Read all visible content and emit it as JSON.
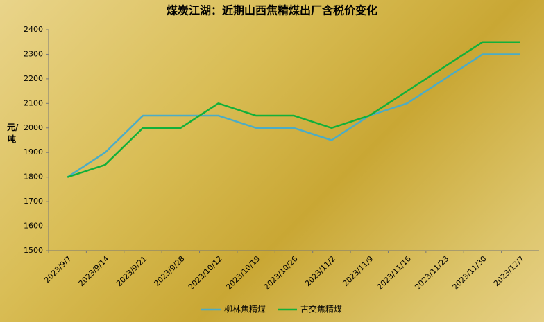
{
  "chart_data": {
    "type": "line",
    "title": "煤炭江湖：近期山西焦精煤出厂含税价变化",
    "y_label": "元/吨",
    "categories": [
      "2023/9/7",
      "2023/9/14",
      "2023/9/21",
      "2023/9/28",
      "2023/10/12",
      "2023/10/19",
      "2023/10/26",
      "2023/11/2",
      "2023/11/9",
      "2023/11/16",
      "2023/11/23",
      "2023/11/30",
      "2023/12/7"
    ],
    "series": [
      {
        "name": "柳林焦精煤",
        "color": "#4bacc6",
        "values": [
          1800,
          1900,
          2050,
          2050,
          2050,
          2000,
          2000,
          1950,
          2050,
          2100,
          2200,
          2300,
          2300
        ]
      },
      {
        "name": "古交焦精煤",
        "color": "#12b03a",
        "values": [
          1800,
          1850,
          2000,
          2000,
          2100,
          2050,
          2050,
          2000,
          2050,
          2150,
          2250,
          2350,
          2350
        ]
      }
    ],
    "ylim": [
      1500,
      2400
    ],
    "yticks": [
      1500,
      1600,
      1700,
      1800,
      1900,
      2000,
      2100,
      2200,
      2300,
      2400
    ],
    "grid": false
  }
}
